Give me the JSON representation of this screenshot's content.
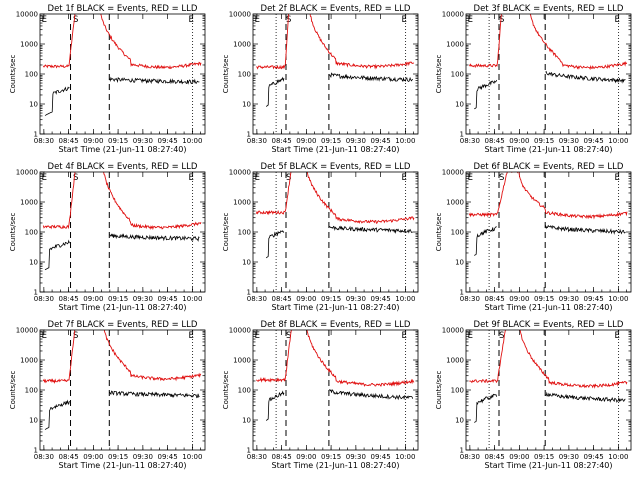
{
  "chart_data": {
    "type": "line",
    "layout": "3x3 grid",
    "common": {
      "xlabel": "Start Time (21-Jun-11 08:27:40)",
      "ylabel": "Counts/sec",
      "x_tick_labels": [
        "08:30",
        "08:45",
        "09:00",
        "09:15",
        "09:30",
        "09:45",
        "10:00"
      ],
      "x_tick_minutes": [
        2.33,
        17.33,
        32.33,
        47.33,
        62.33,
        77.33,
        92.33
      ],
      "xlim_minutes": [
        0,
        100
      ],
      "y_scale": "log",
      "ylim": [
        1,
        10000
      ],
      "y_tick_labels": [
        "1",
        "10",
        "100",
        "1000",
        "10000"
      ],
      "series_colors": {
        "Events": "#000000",
        "LLD": "#e01010"
      }
    },
    "panels": [
      {
        "title": "Det 1f BLACK = Events, RED = LLD",
        "letters": [
          {
            "t": "E",
            "x": 1
          },
          {
            "t": "S",
            "x": 20
          },
          {
            "t": "E",
            "x": 90
          }
        ],
        "vlines": [
          {
            "x": 18.5,
            "style": "dashed"
          },
          {
            "x": 42,
            "style": "dashed"
          },
          {
            "x": 92.5,
            "style": "dotted"
          }
        ],
        "lld": {
          "start": 2,
          "end": 98,
          "base": 210,
          "pre": 180,
          "end_level": 230,
          "peak": 25000,
          "peak_start": 22,
          "peak_end": 36,
          "decay_end": 55,
          "rise": 17.5
        },
        "events": {
          "start": 3,
          "end": 97,
          "pre": 30,
          "post": 70,
          "end_level": 55,
          "first": 6,
          "peak_start": 18,
          "resume": 42,
          "last_drop": 97,
          "last_drop_level": 30
        }
      },
      {
        "title": "Det 2f BLACK = Events, RED = LLD",
        "letters": [
          {
            "t": "E",
            "x": 1
          },
          {
            "t": "S",
            "x": 20
          },
          {
            "t": "E",
            "x": 90
          }
        ],
        "vlines": [
          {
            "x": 14,
            "style": "dotted"
          },
          {
            "x": 20,
            "style": "dashed"
          },
          {
            "x": 46,
            "style": "dashed"
          },
          {
            "x": 92.5,
            "style": "dotted"
          }
        ],
        "lld": {
          "start": 2,
          "end": 98,
          "base": 230,
          "pre": 170,
          "end_level": 240,
          "peak": 25000,
          "peak_start": 22,
          "peak_end": 34,
          "decay_end": 50,
          "rise": 19.5
        },
        "events": {
          "start": 8,
          "end": 97,
          "pre": 60,
          "post": 100,
          "end_level": 65,
          "first": 8,
          "peak_start": 19,
          "resume": 46,
          "last_drop": 97,
          "last_drop_level": 20
        }
      },
      {
        "title": "Det 3f BLACK = Events, RED = LLD",
        "letters": [
          {
            "t": "E",
            "x": 1
          },
          {
            "t": "S",
            "x": 20
          },
          {
            "t": "E",
            "x": 90
          }
        ],
        "vlines": [
          {
            "x": 14,
            "style": "dotted"
          },
          {
            "x": 20,
            "style": "dashed"
          },
          {
            "x": 48,
            "style": "dashed"
          },
          {
            "x": 92.5,
            "style": "dotted"
          }
        ],
        "lld": {
          "start": 2,
          "end": 98,
          "base": 200,
          "pre": 190,
          "end_level": 230,
          "peak": 25000,
          "peak_start": 22,
          "peak_end": 38,
          "decay_end": 58,
          "rise": 19
        },
        "events": {
          "start": 5,
          "end": 97,
          "pre": 50,
          "post": 120,
          "end_level": 60,
          "first": 5,
          "peak_start": 19,
          "resume": 48,
          "last_drop": 97,
          "last_drop_level": 25
        }
      },
      {
        "title": "Det 4f BLACK = Events, RED = LLD",
        "letters": [
          {
            "t": "E",
            "x": 1
          },
          {
            "t": "S",
            "x": 20
          },
          {
            "t": "E",
            "x": 90
          }
        ],
        "vlines": [
          {
            "x": 18.5,
            "style": "dashed"
          },
          {
            "x": 42,
            "style": "dashed"
          },
          {
            "x": 92.5,
            "style": "dotted"
          }
        ],
        "lld": {
          "start": 2,
          "end": 98,
          "base": 170,
          "pre": 150,
          "end_level": 200,
          "peak": 25000,
          "peak_start": 22,
          "peak_end": 38,
          "decay_end": 55,
          "rise": 17.5
        },
        "events": {
          "start": 3,
          "end": 97,
          "pre": 40,
          "post": 80,
          "end_level": 60,
          "first": 4,
          "peak_start": 18,
          "resume": 42,
          "last_drop": 97,
          "last_drop_level": 30
        }
      },
      {
        "title": "Det 5f BLACK = Events, RED = LLD",
        "letters": [
          {
            "t": "E",
            "x": 1
          },
          {
            "t": "S",
            "x": 20
          },
          {
            "t": "E",
            "x": 90
          }
        ],
        "vlines": [
          {
            "x": 14,
            "style": "dotted"
          },
          {
            "x": 20,
            "style": "dashed"
          },
          {
            "x": 46,
            "style": "dashed"
          },
          {
            "x": 92.5,
            "style": "dotted"
          }
        ],
        "lld": {
          "start": 2,
          "end": 98,
          "base": 280,
          "pre": 450,
          "end_level": 300,
          "peak": 25000,
          "peak_start": 24,
          "peak_end": 32,
          "decay_end": 50,
          "rise": 19.5
        },
        "events": {
          "start": 8,
          "end": 97,
          "pre": 100,
          "post": 150,
          "end_level": 110,
          "first": 8,
          "peak_start": 19,
          "resume": 46,
          "last_drop": 97,
          "last_drop_level": 30
        }
      },
      {
        "title": "Det 6f BLACK = Events, RED = LLD",
        "letters": [
          {
            "t": "E",
            "x": 1
          },
          {
            "t": "S",
            "x": 20
          },
          {
            "t": "E",
            "x": 90
          }
        ],
        "vlines": [
          {
            "x": 14,
            "style": "dotted"
          },
          {
            "x": 20,
            "style": "dashed"
          },
          {
            "x": 48,
            "style": "dashed"
          },
          {
            "x": 92.5,
            "style": "dotted"
          }
        ],
        "lld": {
          "start": 2,
          "end": 98,
          "base": 450,
          "pre": 380,
          "end_level": 430,
          "peak": 11000,
          "peak_start": 25,
          "peak_end": 32,
          "decay_end": 48,
          "rise": 19
        },
        "events": {
          "start": 5,
          "end": 97,
          "pre": 120,
          "post": 160,
          "end_level": 100,
          "first": 5,
          "peak_start": 19,
          "resume": 48,
          "last_drop": 97,
          "last_drop_level": 40
        }
      },
      {
        "title": "Det 7f BLACK = Events, RED = LLD",
        "letters": [
          {
            "t": "E",
            "x": 1
          },
          {
            "t": "S",
            "x": 20
          },
          {
            "t": "E",
            "x": 90
          }
        ],
        "vlines": [
          {
            "x": 18.5,
            "style": "dashed"
          },
          {
            "x": 42,
            "style": "dashed"
          },
          {
            "x": 92.5,
            "style": "dotted"
          }
        ],
        "lld": {
          "start": 2,
          "end": 98,
          "base": 300,
          "pre": 200,
          "end_level": 320,
          "peak": 25000,
          "peak_start": 22,
          "peak_end": 38,
          "decay_end": 55,
          "rise": 17.5
        },
        "events": {
          "start": 3,
          "end": 97,
          "pre": 35,
          "post": 85,
          "end_level": 65,
          "first": 4,
          "peak_start": 18,
          "resume": 42,
          "last_drop": 97,
          "last_drop_level": 35
        }
      },
      {
        "title": "Det 8f BLACK = Events, RED = LLD",
        "letters": [
          {
            "t": "E",
            "x": 1
          },
          {
            "t": "S",
            "x": 20
          },
          {
            "t": "E",
            "x": 90
          }
        ],
        "vlines": [
          {
            "x": 14,
            "style": "dotted"
          },
          {
            "x": 20,
            "style": "dashed"
          },
          {
            "x": 46,
            "style": "dashed"
          },
          {
            "x": 92.5,
            "style": "dotted"
          }
        ],
        "lld": {
          "start": 2,
          "end": 98,
          "base": 200,
          "pre": 220,
          "end_level": 200,
          "peak": 25000,
          "peak_start": 24,
          "peak_end": 32,
          "decay_end": 50,
          "rise": 19.5
        },
        "events": {
          "start": 8,
          "end": 97,
          "pre": 70,
          "post": 100,
          "end_level": 55,
          "first": 8,
          "peak_start": 19,
          "resume": 46,
          "last_drop": 97,
          "last_drop_level": 20
        }
      },
      {
        "title": "Det 9f BLACK = Events, RED = LLD",
        "letters": [
          {
            "t": "E",
            "x": 1
          },
          {
            "t": "S",
            "x": 20
          },
          {
            "t": "E",
            "x": 90
          }
        ],
        "vlines": [
          {
            "x": 14,
            "style": "dotted"
          },
          {
            "x": 20,
            "style": "dashed"
          },
          {
            "x": 48,
            "style": "dashed"
          },
          {
            "x": 92.5,
            "style": "dotted"
          }
        ],
        "lld": {
          "start": 2,
          "end": 98,
          "base": 180,
          "pre": 200,
          "end_level": 180,
          "peak": 25000,
          "peak_start": 25,
          "peak_end": 32,
          "decay_end": 50,
          "rise": 19
        },
        "events": {
          "start": 5,
          "end": 97,
          "pre": 60,
          "post": 80,
          "end_level": 45,
          "first": 5,
          "peak_start": 19,
          "resume": 48,
          "last_drop": 97,
          "last_drop_level": 20
        }
      }
    ]
  }
}
